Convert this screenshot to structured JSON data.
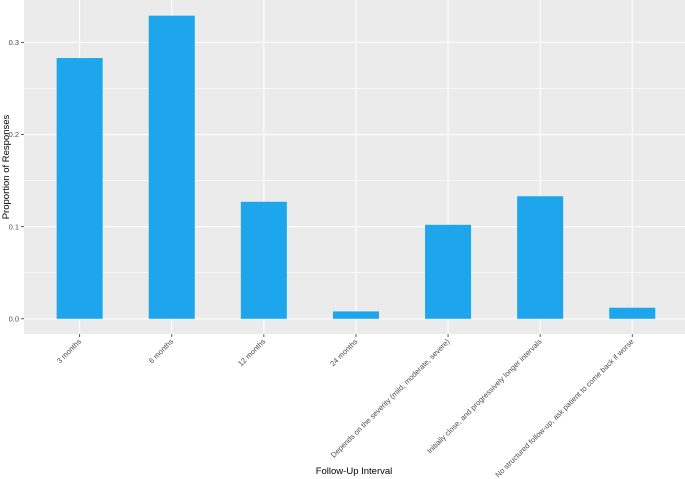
{
  "chart_data": {
    "type": "bar",
    "title": "",
    "xlabel": "Follow-Up Interval",
    "ylabel": "Proportion of Responses",
    "categories": [
      "3 months",
      "6 months",
      "12 months",
      "24 months",
      "Depends on the severity (mild, moderate, severe)",
      "Initially close, and progressively longer intervals",
      "No structured follow-up, ask patient to come back if worse"
    ],
    "values": [
      0.283,
      0.329,
      0.127,
      0.008,
      0.102,
      0.133,
      0.012
    ],
    "ylim": [
      -0.0165,
      0.346
    ],
    "yticks": [
      0.0,
      0.1,
      0.2,
      0.3
    ],
    "ytick_labels": [
      "0.0",
      "0.1",
      "0.2",
      "0.3"
    ],
    "grid": true,
    "colors": {
      "bar": "#1DA6EC",
      "panel_background": "#EBEBEB",
      "grid": "#FFFFFF"
    }
  }
}
